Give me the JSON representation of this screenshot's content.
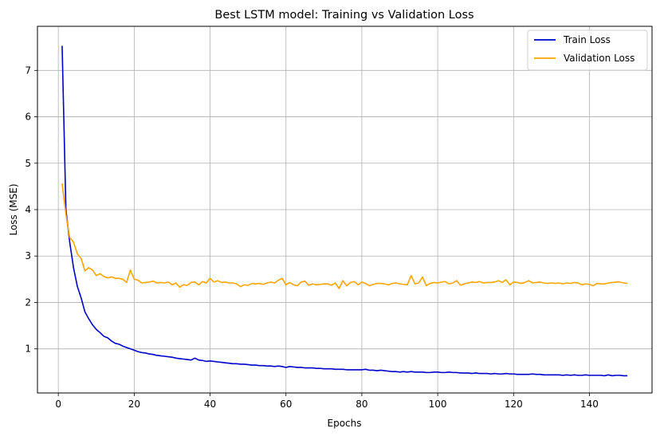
{
  "chart_data": {
    "type": "line",
    "title": "Best LSTM model: Training vs Validation Loss",
    "xlabel": "Epochs",
    "ylabel": "Loss (MSE)",
    "xlim": [
      -5.5,
      156.5
    ],
    "ylim": [
      0.05,
      7.95
    ],
    "xticks": [
      0,
      20,
      40,
      60,
      80,
      100,
      120,
      140
    ],
    "yticks": [
      1,
      2,
      3,
      4,
      5,
      6,
      7
    ],
    "grid": true,
    "legend_position": "top-right",
    "series": [
      {
        "name": "Train Loss",
        "color": "#0000cd",
        "x": [
          1,
          2,
          3,
          4,
          5,
          6,
          7,
          8,
          9,
          10,
          11,
          12,
          13,
          14,
          15,
          16,
          17,
          18,
          19,
          20,
          21,
          22,
          23,
          24,
          25,
          26,
          27,
          28,
          29,
          30,
          31,
          32,
          33,
          34,
          35,
          36,
          37,
          38,
          39,
          40,
          41,
          42,
          43,
          44,
          45,
          46,
          47,
          48,
          49,
          50,
          51,
          52,
          53,
          54,
          55,
          56,
          57,
          58,
          59,
          60,
          61,
          62,
          63,
          64,
          65,
          66,
          67,
          68,
          69,
          70,
          71,
          72,
          73,
          74,
          75,
          76,
          77,
          78,
          79,
          80,
          81,
          82,
          83,
          84,
          85,
          86,
          87,
          88,
          89,
          90,
          91,
          92,
          93,
          94,
          95,
          96,
          97,
          98,
          99,
          100,
          101,
          102,
          103,
          104,
          105,
          106,
          107,
          108,
          109,
          110,
          111,
          112,
          113,
          114,
          115,
          116,
          117,
          118,
          119,
          120,
          121,
          122,
          123,
          124,
          125,
          126,
          127,
          128,
          129,
          130,
          131,
          132,
          133,
          134,
          135,
          136,
          137,
          138,
          139,
          140,
          141,
          142,
          143,
          144,
          145,
          146,
          147,
          148,
          149,
          150
        ],
        "values": [
          7.53,
          4.0,
          3.3,
          2.75,
          2.35,
          2.1,
          1.8,
          1.65,
          1.52,
          1.42,
          1.35,
          1.27,
          1.24,
          1.17,
          1.12,
          1.1,
          1.06,
          1.03,
          1.0,
          0.97,
          0.94,
          0.92,
          0.91,
          0.89,
          0.88,
          0.86,
          0.85,
          0.84,
          0.83,
          0.82,
          0.8,
          0.79,
          0.78,
          0.77,
          0.76,
          0.8,
          0.76,
          0.75,
          0.73,
          0.74,
          0.73,
          0.72,
          0.71,
          0.7,
          0.69,
          0.68,
          0.68,
          0.67,
          0.67,
          0.66,
          0.65,
          0.65,
          0.64,
          0.64,
          0.63,
          0.63,
          0.62,
          0.63,
          0.62,
          0.6,
          0.62,
          0.61,
          0.6,
          0.6,
          0.59,
          0.59,
          0.59,
          0.58,
          0.58,
          0.57,
          0.57,
          0.57,
          0.56,
          0.56,
          0.56,
          0.55,
          0.55,
          0.55,
          0.55,
          0.55,
          0.56,
          0.54,
          0.54,
          0.53,
          0.54,
          0.53,
          0.52,
          0.51,
          0.51,
          0.5,
          0.51,
          0.5,
          0.51,
          0.5,
          0.5,
          0.5,
          0.49,
          0.49,
          0.5,
          0.5,
          0.49,
          0.49,
          0.5,
          0.49,
          0.49,
          0.48,
          0.48,
          0.48,
          0.47,
          0.48,
          0.47,
          0.47,
          0.47,
          0.46,
          0.47,
          0.46,
          0.46,
          0.47,
          0.46,
          0.46,
          0.45,
          0.45,
          0.45,
          0.45,
          0.46,
          0.45,
          0.45,
          0.44,
          0.44,
          0.44,
          0.44,
          0.44,
          0.43,
          0.44,
          0.43,
          0.44,
          0.43,
          0.43,
          0.44,
          0.43,
          0.43,
          0.43,
          0.43,
          0.42,
          0.44,
          0.42,
          0.43,
          0.43,
          0.42,
          0.42
        ]
      },
      {
        "name": "Validation Loss",
        "color": "#ffa500",
        "x": [
          1,
          2,
          3,
          4,
          5,
          6,
          7,
          8,
          9,
          10,
          11,
          12,
          13,
          14,
          15,
          16,
          17,
          18,
          19,
          20,
          21,
          22,
          23,
          24,
          25,
          26,
          27,
          28,
          29,
          30,
          31,
          32,
          33,
          34,
          35,
          36,
          37,
          38,
          39,
          40,
          41,
          42,
          43,
          44,
          45,
          46,
          47,
          48,
          49,
          50,
          51,
          52,
          53,
          54,
          55,
          56,
          57,
          58,
          59,
          60,
          61,
          62,
          63,
          64,
          65,
          66,
          67,
          68,
          69,
          70,
          71,
          72,
          73,
          74,
          75,
          76,
          77,
          78,
          79,
          80,
          81,
          82,
          83,
          84,
          85,
          86,
          87,
          88,
          89,
          90,
          91,
          92,
          93,
          94,
          95,
          96,
          97,
          98,
          99,
          100,
          101,
          102,
          103,
          104,
          105,
          106,
          107,
          108,
          109,
          110,
          111,
          112,
          113,
          114,
          115,
          116,
          117,
          118,
          119,
          120,
          121,
          122,
          123,
          124,
          125,
          126,
          127,
          128,
          129,
          130,
          131,
          132,
          133,
          134,
          135,
          136,
          137,
          138,
          139,
          140,
          141,
          142,
          143,
          144,
          145,
          146,
          147,
          148,
          149,
          150
        ],
        "values": [
          4.56,
          3.9,
          3.4,
          3.3,
          3.05,
          2.95,
          2.68,
          2.75,
          2.7,
          2.58,
          2.62,
          2.56,
          2.53,
          2.55,
          2.52,
          2.52,
          2.5,
          2.43,
          2.7,
          2.5,
          2.48,
          2.42,
          2.43,
          2.44,
          2.46,
          2.42,
          2.43,
          2.42,
          2.44,
          2.38,
          2.42,
          2.33,
          2.38,
          2.37,
          2.43,
          2.44,
          2.38,
          2.45,
          2.42,
          2.52,
          2.44,
          2.47,
          2.43,
          2.44,
          2.42,
          2.42,
          2.4,
          2.34,
          2.38,
          2.37,
          2.41,
          2.4,
          2.41,
          2.39,
          2.42,
          2.44,
          2.42,
          2.48,
          2.52,
          2.38,
          2.43,
          2.38,
          2.36,
          2.44,
          2.46,
          2.37,
          2.4,
          2.38,
          2.39,
          2.4,
          2.4,
          2.37,
          2.42,
          2.3,
          2.47,
          2.36,
          2.43,
          2.45,
          2.38,
          2.44,
          2.41,
          2.36,
          2.39,
          2.41,
          2.41,
          2.4,
          2.38,
          2.41,
          2.42,
          2.4,
          2.39,
          2.38,
          2.58,
          2.4,
          2.42,
          2.55,
          2.36,
          2.41,
          2.43,
          2.42,
          2.44,
          2.45,
          2.4,
          2.42,
          2.47,
          2.37,
          2.4,
          2.42,
          2.44,
          2.43,
          2.45,
          2.42,
          2.43,
          2.43,
          2.44,
          2.47,
          2.43,
          2.49,
          2.38,
          2.44,
          2.43,
          2.41,
          2.43,
          2.47,
          2.42,
          2.43,
          2.44,
          2.42,
          2.41,
          2.42,
          2.41,
          2.42,
          2.4,
          2.42,
          2.41,
          2.43,
          2.42,
          2.38,
          2.4,
          2.39,
          2.36,
          2.41,
          2.4,
          2.4,
          2.42,
          2.43,
          2.44,
          2.44,
          2.42,
          2.41
        ]
      }
    ]
  }
}
